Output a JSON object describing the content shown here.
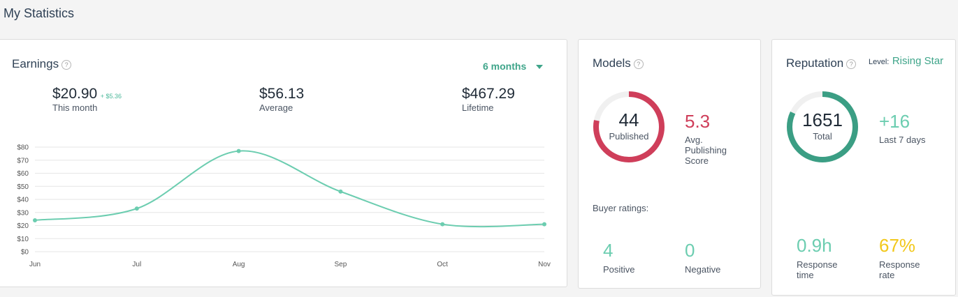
{
  "page": {
    "title": "My Statistics"
  },
  "earnings": {
    "title": "Earnings",
    "help_icon": "?",
    "range": "6 months",
    "this_month": {
      "value": "$20.90",
      "delta": "+ $5.36",
      "label": "This month"
    },
    "average": {
      "value": "$56.13",
      "label": "Average"
    },
    "lifetime": {
      "value": "$467.29",
      "label": "Lifetime"
    }
  },
  "chart_data": {
    "type": "line",
    "categories": [
      "Jun",
      "Jul",
      "Aug",
      "Sep",
      "Oct",
      "Nov"
    ],
    "series": [
      {
        "values": [
          24,
          33,
          77,
          46,
          21,
          21
        ]
      }
    ],
    "ylim": [
      0,
      80
    ],
    "yticks": [
      "$0",
      "$10",
      "$20",
      "$30",
      "$40",
      "$50",
      "$60",
      "$70",
      "$80"
    ],
    "grid": true,
    "color": "#6ccdb0"
  },
  "models": {
    "title": "Models",
    "help_icon": "?",
    "published_value": "44",
    "published_label": "Published",
    "published_fraction": 0.78,
    "score_value": "5.3",
    "score_label_1": "Avg.",
    "score_label_2": "Publishing",
    "score_label_3": "Score",
    "ratings_title": "Buyer ratings:",
    "positive_value": "4",
    "positive_label": "Positive",
    "negative_value": "0",
    "negative_label": "Negative",
    "ring_color": "#cf3e5a",
    "score_color": "#cf3e5a",
    "positive_color": "#6ccdb0"
  },
  "reputation": {
    "title": "Reputation",
    "help_icon": "?",
    "level_label": "Level:",
    "level_value": "Rising Star",
    "total_value": "1651",
    "total_label": "Total",
    "total_fraction": 0.82,
    "delta_value": "+16",
    "delta_label": "Last 7 days",
    "response_time_value": "0.9h",
    "response_time_label_1": "Response",
    "response_time_label_2": "time",
    "response_rate_value": "67%",
    "response_rate_label_1": "Response",
    "response_rate_label_2": "rate",
    "ring_color": "#3b9e84",
    "delta_color": "#6ccdb0",
    "response_time_color": "#6ccdb0",
    "response_rate_color": "#f2c81b"
  }
}
